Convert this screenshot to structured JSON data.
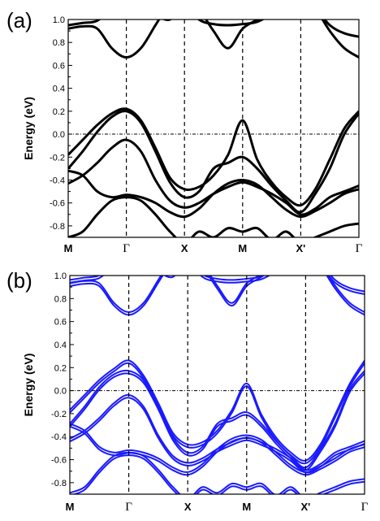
{
  "chart_data": [
    {
      "panel": "(a)",
      "type": "line",
      "ylabel": "Energy (eV)",
      "ylim": [
        -0.9,
        1.0
      ],
      "yticks": [
        "1.0",
        "0.8",
        "0.6",
        "0.4",
        "0.2",
        "0.0",
        "-0.2",
        "-0.4",
        "-0.6",
        "-0.8"
      ],
      "xticks": [
        "M",
        "Γ",
        "X",
        "M",
        "X'",
        "Γ"
      ],
      "xrange": [
        0,
        5
      ],
      "reference_lines": {
        "fermi_level": 0.0,
        "vertical_at": [
          1,
          2,
          3,
          4
        ]
      },
      "color": "#000000",
      "doubled_bands": false,
      "series": [
        {
          "x": [
            0,
            0.25,
            0.5,
            0.75,
            1,
            1.25,
            1.5,
            1.75,
            2,
            2.25,
            2.5,
            2.75,
            3,
            3.25,
            3.5,
            3.75,
            4,
            4.25,
            4.5,
            4.75,
            5
          ],
          "y": [
            -0.18,
            -0.05,
            0.08,
            0.18,
            0.22,
            0.12,
            -0.12,
            -0.38,
            -0.48,
            -0.46,
            -0.36,
            -0.18,
            0.12,
            -0.22,
            -0.42,
            -0.55,
            -0.62,
            -0.48,
            -0.22,
            0.05,
            0.2
          ]
        },
        {
          "x": [
            0,
            0.25,
            0.5,
            0.75,
            1,
            1.25,
            1.5,
            1.75,
            2,
            2.25,
            2.5,
            2.75,
            3,
            3.25,
            3.5,
            3.75,
            4,
            4.25,
            4.5,
            4.75,
            5
          ],
          "y": [
            -0.3,
            -0.15,
            0.02,
            0.15,
            0.2,
            0.1,
            -0.15,
            -0.42,
            -0.55,
            -0.5,
            -0.3,
            -0.25,
            -0.2,
            -0.3,
            -0.45,
            -0.58,
            -0.68,
            -0.52,
            -0.3,
            0.0,
            0.18
          ]
        },
        {
          "x": [
            0,
            0.25,
            0.5,
            0.75,
            1,
            1.25,
            1.5,
            1.75,
            2,
            2.25,
            2.5,
            2.75,
            3,
            3.25,
            3.5,
            3.75,
            4,
            4.25,
            4.5,
            4.75,
            5
          ],
          "y": [
            -0.43,
            -0.36,
            -0.25,
            -0.12,
            -0.05,
            -0.15,
            -0.4,
            -0.58,
            -0.64,
            -0.6,
            -0.52,
            -0.46,
            -0.42,
            -0.46,
            -0.52,
            -0.6,
            -0.7,
            -0.65,
            -0.55,
            -0.5,
            -0.45
          ]
        },
        {
          "x": [
            0,
            0.25,
            0.5,
            0.75,
            1,
            1.25,
            1.5,
            1.75,
            2,
            2.25,
            2.5,
            2.75,
            3,
            3.25,
            3.5,
            3.75,
            4,
            4.25,
            4.5,
            4.75,
            5
          ],
          "y": [
            -0.32,
            -0.36,
            -0.5,
            -0.55,
            -0.53,
            -0.55,
            -0.6,
            -0.68,
            -0.72,
            -0.65,
            -0.52,
            -0.43,
            -0.4,
            -0.44,
            -0.55,
            -0.66,
            -0.72,
            -0.67,
            -0.6,
            -0.52,
            -0.48
          ]
        },
        {
          "x": [
            0,
            0.25,
            0.5,
            0.75,
            1,
            1.25,
            1.5,
            1.75,
            2,
            2.25,
            2.5,
            2.75,
            3,
            3.25,
            3.5,
            3.75,
            4,
            4.25,
            4.5,
            4.75,
            5
          ],
          "y": [
            -0.9,
            -0.85,
            -0.7,
            -0.58,
            -0.55,
            -0.58,
            -0.7,
            -0.85,
            -0.95,
            -0.85,
            -0.9,
            -0.82,
            -0.85,
            -0.82,
            -0.92,
            -0.85,
            -0.95,
            -0.9,
            -0.85,
            -0.8,
            -0.78
          ]
        },
        {
          "x": [
            0,
            0.25,
            0.5,
            0.75,
            1,
            1.25,
            1.5,
            1.75,
            2,
            2.25,
            2.5,
            2.75,
            3,
            3.25,
            3.5,
            3.75,
            4,
            4.25,
            4.5,
            4.75,
            5
          ],
          "y": [
            0.92,
            0.94,
            0.92,
            0.75,
            0.67,
            0.75,
            0.95,
            1.15,
            1.3,
            1.1,
            0.9,
            0.75,
            0.92,
            1.0,
            1.1,
            1.2,
            1.25,
            1.1,
            0.9,
            0.75,
            0.67
          ]
        },
        {
          "x": [
            0,
            0.25,
            0.5,
            0.75,
            1,
            1.25,
            1.5,
            1.75,
            2,
            2.25,
            2.5,
            2.75,
            3,
            3.25,
            3.5,
            3.75,
            4,
            4.25,
            4.5,
            4.75,
            5
          ],
          "y": [
            0.95,
            0.97,
            0.99,
            1.1,
            1.2,
            1.15,
            1.05,
            1.0,
            1.15,
            1.0,
            0.96,
            0.95,
            0.96,
            0.98,
            1.05,
            1.15,
            1.2,
            1.1,
            0.95,
            0.88,
            0.85
          ]
        }
      ]
    },
    {
      "panel": "(b)",
      "type": "line",
      "ylabel": "Energy (eV)",
      "ylim": [
        -0.9,
        1.0
      ],
      "yticks": [
        "1.0",
        "0.8",
        "0.6",
        "0.4",
        "0.2",
        "0.0",
        "-0.2",
        "-0.4",
        "-0.6",
        "-0.8"
      ],
      "xticks": [
        "M",
        "Γ",
        "X",
        "M",
        "X'",
        "Γ"
      ],
      "xrange": [
        0,
        5
      ],
      "reference_lines": {
        "fermi_level": 0.0,
        "vertical_at": [
          1,
          2,
          3,
          4
        ]
      },
      "color": "#1a1aff",
      "doubled_bands": true,
      "series": [
        {
          "x": [
            0,
            0.25,
            0.5,
            0.75,
            1,
            1.25,
            1.5,
            1.75,
            2,
            2.25,
            2.5,
            2.75,
            3,
            3.25,
            3.5,
            3.75,
            4,
            4.25,
            4.5,
            4.75,
            5
          ],
          "y": [
            -0.18,
            -0.05,
            0.08,
            0.18,
            0.25,
            0.12,
            -0.12,
            -0.38,
            -0.48,
            -0.46,
            -0.36,
            -0.18,
            0.05,
            -0.22,
            -0.42,
            -0.55,
            -0.62,
            -0.48,
            -0.22,
            0.05,
            0.25
          ]
        },
        {
          "x": [
            0,
            0.25,
            0.5,
            0.75,
            1,
            1.25,
            1.5,
            1.75,
            2,
            2.25,
            2.5,
            2.75,
            3,
            3.25,
            3.5,
            3.75,
            4,
            4.25,
            4.5,
            4.75,
            5
          ],
          "y": [
            -0.3,
            -0.15,
            0.02,
            0.13,
            0.16,
            0.08,
            -0.15,
            -0.42,
            -0.55,
            -0.5,
            -0.3,
            -0.25,
            -0.2,
            -0.3,
            -0.45,
            -0.58,
            -0.68,
            -0.52,
            -0.3,
            0.0,
            0.16
          ]
        },
        {
          "x": [
            0,
            0.25,
            0.5,
            0.75,
            1,
            1.25,
            1.5,
            1.75,
            2,
            2.25,
            2.5,
            2.75,
            3,
            3.25,
            3.5,
            3.75,
            4,
            4.25,
            4.5,
            4.75,
            5
          ],
          "y": [
            -0.43,
            -0.36,
            -0.25,
            -0.12,
            -0.05,
            -0.15,
            -0.4,
            -0.58,
            -0.64,
            -0.6,
            -0.52,
            -0.46,
            -0.42,
            -0.46,
            -0.52,
            -0.6,
            -0.7,
            -0.65,
            -0.55,
            -0.5,
            -0.45
          ]
        },
        {
          "x": [
            0,
            0.25,
            0.5,
            0.75,
            1,
            1.25,
            1.5,
            1.75,
            2,
            2.25,
            2.5,
            2.75,
            3,
            3.25,
            3.5,
            3.75,
            4,
            4.25,
            4.5,
            4.75,
            5
          ],
          "y": [
            -0.3,
            -0.36,
            -0.5,
            -0.55,
            -0.53,
            -0.55,
            -0.6,
            -0.68,
            -0.72,
            -0.65,
            -0.52,
            -0.43,
            -0.4,
            -0.44,
            -0.55,
            -0.66,
            -0.72,
            -0.67,
            -0.6,
            -0.52,
            -0.48
          ]
        },
        {
          "x": [
            0,
            0.25,
            0.5,
            0.75,
            1,
            1.25,
            1.5,
            1.75,
            2,
            2.25,
            2.5,
            2.75,
            3,
            3.25,
            3.5,
            3.75,
            4,
            4.25,
            4.5,
            4.75,
            5
          ],
          "y": [
            -0.9,
            -0.85,
            -0.7,
            -0.58,
            -0.55,
            -0.58,
            -0.7,
            -0.85,
            -0.95,
            -0.85,
            -0.9,
            -0.82,
            -0.85,
            -0.82,
            -0.92,
            -0.85,
            -0.95,
            -0.9,
            -0.85,
            -0.8,
            -0.78
          ]
        },
        {
          "x": [
            0,
            0.25,
            0.5,
            0.75,
            1,
            1.25,
            1.5,
            1.75,
            2,
            2.25,
            2.5,
            2.75,
            3,
            3.25,
            3.5,
            3.75,
            4,
            4.25,
            4.5,
            4.75,
            5
          ],
          "y": [
            0.92,
            0.94,
            0.92,
            0.75,
            0.67,
            0.75,
            0.95,
            1.15,
            1.3,
            1.1,
            0.9,
            0.75,
            0.92,
            1.0,
            1.1,
            1.2,
            1.25,
            1.1,
            0.9,
            0.75,
            0.67
          ]
        },
        {
          "x": [
            0,
            0.25,
            0.5,
            0.75,
            1,
            1.25,
            1.5,
            1.75,
            2,
            2.25,
            2.5,
            2.75,
            3,
            3.25,
            3.5,
            3.75,
            4,
            4.25,
            4.5,
            4.75,
            5
          ],
          "y": [
            0.95,
            0.97,
            0.99,
            1.1,
            1.2,
            1.15,
            1.05,
            1.0,
            1.15,
            1.0,
            0.96,
            0.95,
            0.96,
            0.98,
            1.05,
            1.15,
            1.2,
            1.1,
            0.95,
            0.88,
            0.85
          ]
        }
      ]
    }
  ]
}
